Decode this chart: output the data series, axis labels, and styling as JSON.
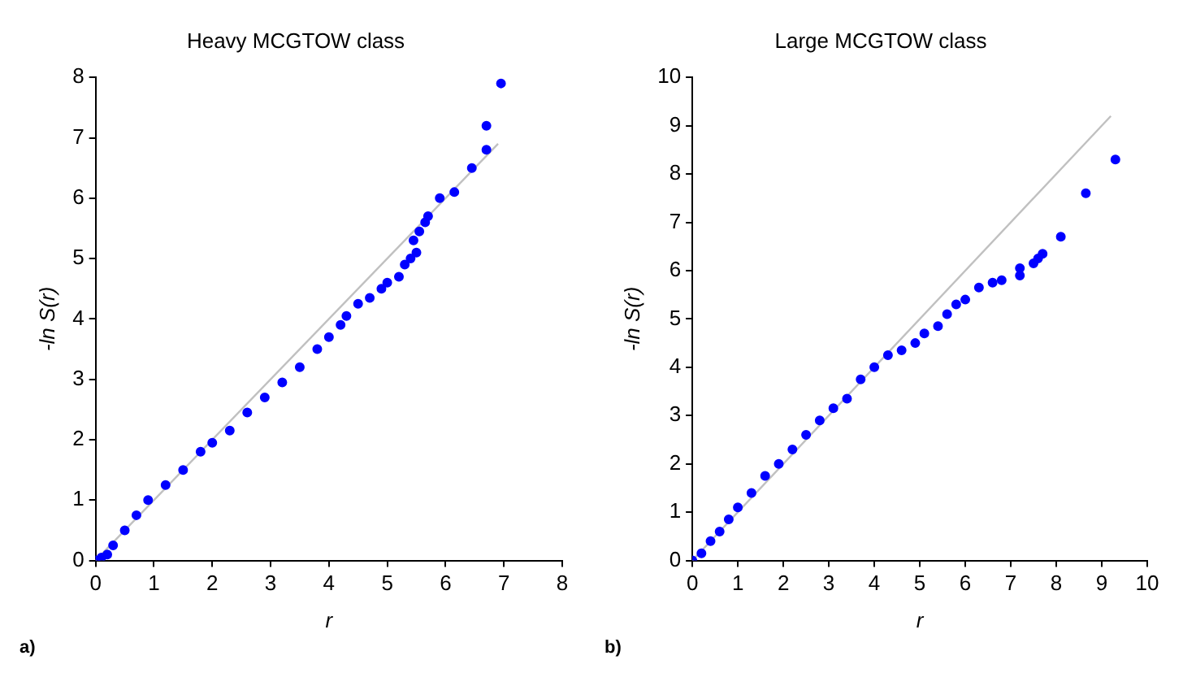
{
  "chart_data": [
    {
      "type": "scatter",
      "title": "Heavy MCGTOW class",
      "xlabel": "r",
      "ylabel": "-ln S(r)",
      "annotations": [
        "a)"
      ],
      "xlim": [
        0,
        8
      ],
      "xticks": [
        0,
        1,
        2,
        3,
        4,
        5,
        6,
        7,
        8
      ],
      "ylim": [
        0,
        8
      ],
      "yticks": [
        0,
        1,
        2,
        3,
        4,
        5,
        6,
        7,
        8
      ],
      "grid": false,
      "legend": false,
      "series": [
        {
          "marker": "circle",
          "color": "#0000ff",
          "x": [
            0,
            0.1,
            0.2,
            0.3,
            0.5,
            0.7,
            0.9,
            1.2,
            1.5,
            1.8,
            2.0,
            2.3,
            2.6,
            2.9,
            3.2,
            3.5,
            3.8,
            4.0,
            4.2,
            4.3,
            4.5,
            4.7,
            4.9,
            5.0,
            5.2,
            5.3,
            5.4,
            5.5,
            5.45,
            5.55,
            5.65,
            5.7,
            5.9,
            6.15,
            6.45,
            6.7,
            6.7,
            6.95
          ],
          "values": [
            0,
            0.05,
            0.1,
            0.25,
            0.5,
            0.75,
            1.0,
            1.25,
            1.5,
            1.8,
            1.95,
            2.15,
            2.45,
            2.7,
            2.95,
            3.2,
            3.5,
            3.7,
            3.9,
            4.05,
            4.25,
            4.35,
            4.5,
            4.6,
            4.7,
            4.9,
            5.0,
            5.1,
            5.3,
            5.45,
            5.6,
            5.7,
            6.0,
            6.1,
            6.5,
            6.8,
            7.2,
            7.9
          ]
        },
        {
          "type": "line",
          "color": "#c0c0c0",
          "x": [
            0,
            6.9
          ],
          "values": [
            0,
            6.9
          ]
        }
      ]
    },
    {
      "type": "scatter",
      "title": "Large MCGTOW class",
      "xlabel": "r",
      "ylabel": "-ln S(r)",
      "annotations": [
        "b)"
      ],
      "xlim": [
        0,
        10
      ],
      "xticks": [
        0,
        1,
        2,
        3,
        4,
        5,
        6,
        7,
        8,
        9,
        10
      ],
      "ylim": [
        0,
        10
      ],
      "yticks": [
        0,
        1,
        2,
        3,
        4,
        5,
        6,
        7,
        8,
        9,
        10
      ],
      "grid": false,
      "legend": false,
      "series": [
        {
          "marker": "circle",
          "color": "#0000ff",
          "x": [
            0,
            0.2,
            0.4,
            0.6,
            0.8,
            1.0,
            1.3,
            1.6,
            1.9,
            2.2,
            2.5,
            2.8,
            3.1,
            3.4,
            3.7,
            4.0,
            4.3,
            4.6,
            4.9,
            5.1,
            5.4,
            5.6,
            5.8,
            6.0,
            6.3,
            6.6,
            6.8,
            7.2,
            7.2,
            7.5,
            7.6,
            7.7,
            8.1,
            8.65,
            9.3
          ],
          "values": [
            0,
            0.15,
            0.4,
            0.6,
            0.85,
            1.1,
            1.4,
            1.75,
            2.0,
            2.3,
            2.6,
            2.9,
            3.15,
            3.35,
            3.75,
            4.0,
            4.25,
            4.35,
            4.5,
            4.7,
            4.85,
            5.1,
            5.3,
            5.4,
            5.65,
            5.75,
            5.8,
            5.9,
            6.05,
            6.15,
            6.25,
            6.35,
            6.7,
            7.6,
            8.3
          ]
        },
        {
          "type": "line",
          "color": "#c0c0c0",
          "x": [
            0,
            9.2
          ],
          "values": [
            0,
            9.2
          ]
        }
      ]
    }
  ]
}
